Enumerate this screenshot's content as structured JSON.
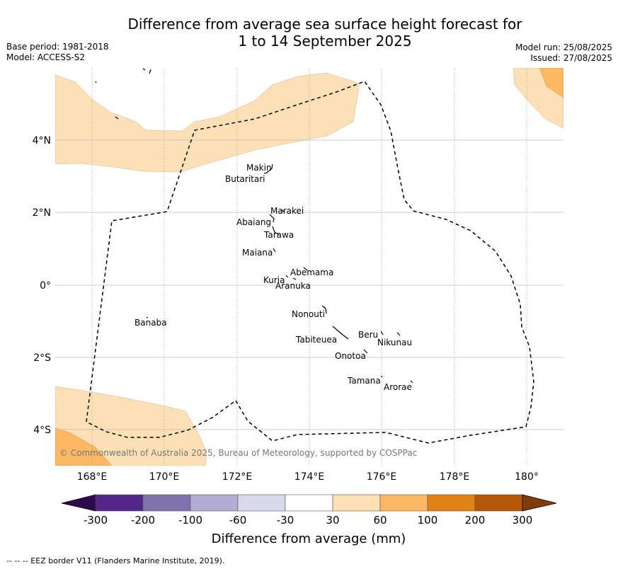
{
  "header": {
    "title_line1": "Difference from average sea surface height forecast for",
    "title_line2": "1 to 14 September 2025",
    "base_period": "Base period: 1981-2018",
    "model": "Model: ACCESS-S2",
    "model_run": "Model run: 25/08/2025",
    "issued": "Issued: 27/08/2025"
  },
  "map": {
    "lon_ticks": [
      "168°E",
      "170°E",
      "172°E",
      "174°E",
      "176°E",
      "178°E",
      "180°"
    ],
    "lat_ticks": [
      "4°N",
      "2°N",
      "0°",
      "2°S",
      "4°S"
    ],
    "lon_range": [
      167,
      181
    ],
    "lat_range": [
      -5,
      6
    ],
    "copyright": "© Commonwealth of Australia 2025, Bureau of Meteorology, supported by COSPPac",
    "islands": [
      {
        "name": "Makin"
      },
      {
        "name": "Butaritari"
      },
      {
        "name": "Marakei"
      },
      {
        "name": "Abaiang"
      },
      {
        "name": "Tarawa"
      },
      {
        "name": "Maiana"
      },
      {
        "name": "Abemama"
      },
      {
        "name": "Kuria"
      },
      {
        "name": "Aranuka"
      },
      {
        "name": "Nonouti"
      },
      {
        "name": "Banaba"
      },
      {
        "name": "Beru"
      },
      {
        "name": "Tabiteuea"
      },
      {
        "name": "Nikunau"
      },
      {
        "name": "Onotoa"
      },
      {
        "name": "Tamana"
      },
      {
        "name": "Arorae"
      }
    ]
  },
  "colorbar": {
    "label": "Difference from average (mm)",
    "ticks": [
      "-300",
      "-200",
      "-100",
      "-60",
      "-30",
      "30",
      "60",
      "100",
      "200",
      "300"
    ],
    "colors": {
      "under": "#2d0a4e",
      "bins": [
        "#542788",
        "#8073ac",
        "#b2abd2",
        "#d8daeb",
        "#ffffff",
        "#fee0b6",
        "#fdb863",
        "#e08214",
        "#b35806"
      ],
      "over": "#7f3b08"
    }
  },
  "footer": {
    "eez_note": "--  --  -- EEZ border V11 (Flanders Marine Institute, 2019)."
  }
}
